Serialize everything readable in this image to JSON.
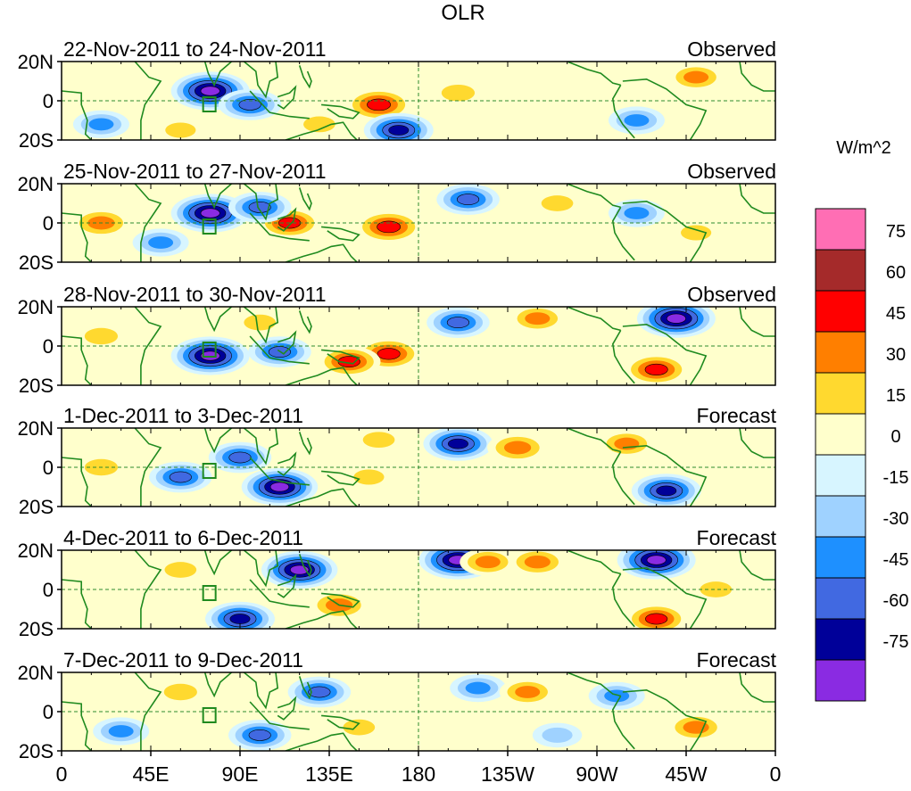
{
  "chart_data": {
    "type": "heatmap",
    "title": "OLR",
    "units": "W/m^2",
    "x_ticks": [
      "0",
      "45E",
      "90E",
      "135E",
      "180",
      "135W",
      "90W",
      "45W",
      "0"
    ],
    "x_values_deg_east": [
      0,
      45,
      90,
      135,
      180,
      225,
      270,
      315,
      360
    ],
    "y_ticks": [
      "20N",
      "0",
      "20S"
    ],
    "y_values_deg": [
      20,
      0,
      -20
    ],
    "colorbar_levels": [
      "75",
      "60",
      "45",
      "30",
      "15",
      "0",
      "-15",
      "-30",
      "-45",
      "-60",
      "-75"
    ],
    "colorbar_colors": [
      "#ff6eb4",
      "#a52a2a",
      "#ff0000",
      "#ff7f00",
      "#ffd92f",
      "#ffffcc",
      "#d7f5ff",
      "#9fd2ff",
      "#1e90ff",
      "#4169e1",
      "#000099",
      "#8a2be2"
    ],
    "panels": [
      {
        "period": "22-Nov-2011 to 24-Nov-2011",
        "status": "Observed",
        "features": [
          {
            "lon": 75,
            "lat": 5,
            "anomaly": -80
          },
          {
            "lon": 95,
            "lat": -2,
            "anomaly": -45
          },
          {
            "lon": 160,
            "lat": -2,
            "anomaly": 55
          },
          {
            "lon": 200,
            "lat": 4,
            "anomaly": 25
          },
          {
            "lon": 130,
            "lat": -12,
            "anomaly": 20
          },
          {
            "lon": 320,
            "lat": 12,
            "anomaly": 30
          },
          {
            "lon": 290,
            "lat": -10,
            "anomaly": -30
          },
          {
            "lon": 20,
            "lat": -12,
            "anomaly": -30
          },
          {
            "lon": 170,
            "lat": -15,
            "anomaly": -60
          },
          {
            "lon": 60,
            "lat": -15,
            "anomaly": 15
          }
        ]
      },
      {
        "period": "25-Nov-2011 to 27-Nov-2011",
        "status": "Observed",
        "features": [
          {
            "lon": 75,
            "lat": 5,
            "anomaly": -80
          },
          {
            "lon": 165,
            "lat": -2,
            "anomaly": 55
          },
          {
            "lon": 115,
            "lat": 0,
            "anomaly": 45
          },
          {
            "lon": 20,
            "lat": 0,
            "anomaly": 40
          },
          {
            "lon": 205,
            "lat": 12,
            "anomaly": -45
          },
          {
            "lon": 250,
            "lat": 10,
            "anomaly": 20
          },
          {
            "lon": 290,
            "lat": 5,
            "anomaly": -30
          },
          {
            "lon": 320,
            "lat": -5,
            "anomaly": 15
          },
          {
            "lon": 100,
            "lat": 8,
            "anomaly": -45
          },
          {
            "lon": 50,
            "lat": -10,
            "anomaly": -30
          }
        ]
      },
      {
        "period": "28-Nov-2011 to 30-Nov-2011",
        "status": "Observed",
        "features": [
          {
            "lon": 75,
            "lat": -5,
            "anomaly": -80
          },
          {
            "lon": 110,
            "lat": -3,
            "anomaly": -45
          },
          {
            "lon": 165,
            "lat": -4,
            "anomaly": 50
          },
          {
            "lon": 145,
            "lat": -8,
            "anomaly": 45
          },
          {
            "lon": 200,
            "lat": 12,
            "anomaly": -45
          },
          {
            "lon": 240,
            "lat": 14,
            "anomaly": 30
          },
          {
            "lon": 300,
            "lat": -12,
            "anomaly": 50
          },
          {
            "lon": 310,
            "lat": 14,
            "anomaly": -80
          },
          {
            "lon": 20,
            "lat": 5,
            "anomaly": 25
          },
          {
            "lon": 100,
            "lat": 12,
            "anomaly": 20
          }
        ]
      },
      {
        "period": "1-Dec-2011 to 3-Dec-2011",
        "status": "Forecast",
        "features": [
          {
            "lon": 200,
            "lat": 12,
            "anomaly": -60
          },
          {
            "lon": 230,
            "lat": 10,
            "anomaly": 40
          },
          {
            "lon": 160,
            "lat": 14,
            "anomaly": 20
          },
          {
            "lon": 110,
            "lat": -10,
            "anomaly": -75
          },
          {
            "lon": 90,
            "lat": 5,
            "anomaly": -45
          },
          {
            "lon": 60,
            "lat": -5,
            "anomaly": -45
          },
          {
            "lon": 20,
            "lat": 0,
            "anomaly": 25
          },
          {
            "lon": 305,
            "lat": -12,
            "anomaly": -60
          },
          {
            "lon": 285,
            "lat": 12,
            "anomaly": 30
          },
          {
            "lon": 155,
            "lat": -5,
            "anomaly": 15
          }
        ]
      },
      {
        "period": "4-Dec-2011 to 6-Dec-2011",
        "status": "Forecast",
        "features": [
          {
            "lon": 120,
            "lat": 10,
            "anomaly": -75
          },
          {
            "lon": 200,
            "lat": 15,
            "anomaly": -80
          },
          {
            "lon": 215,
            "lat": 14,
            "anomaly": 30
          },
          {
            "lon": 240,
            "lat": 14,
            "anomaly": 35
          },
          {
            "lon": 300,
            "lat": 15,
            "anomaly": -80
          },
          {
            "lon": 140,
            "lat": -8,
            "anomaly": 40
          },
          {
            "lon": 90,
            "lat": -15,
            "anomaly": -60
          },
          {
            "lon": 60,
            "lat": 10,
            "anomaly": 20
          },
          {
            "lon": 300,
            "lat": -15,
            "anomaly": 45
          },
          {
            "lon": 330,
            "lat": 0,
            "anomaly": 20
          }
        ]
      },
      {
        "period": "7-Dec-2011 to 9-Dec-2011",
        "status": "Forecast",
        "features": [
          {
            "lon": 100,
            "lat": -12,
            "anomaly": -45
          },
          {
            "lon": 130,
            "lat": 10,
            "anomaly": -45
          },
          {
            "lon": 210,
            "lat": 12,
            "anomaly": -30
          },
          {
            "lon": 235,
            "lat": 10,
            "anomaly": 30
          },
          {
            "lon": 280,
            "lat": 8,
            "anomaly": -30
          },
          {
            "lon": 320,
            "lat": -8,
            "anomaly": 35
          },
          {
            "lon": 60,
            "lat": 10,
            "anomaly": 25
          },
          {
            "lon": 150,
            "lat": -8,
            "anomaly": 20
          },
          {
            "lon": 30,
            "lat": -10,
            "anomaly": -30
          },
          {
            "lon": 250,
            "lat": -12,
            "anomaly": -15
          }
        ]
      }
    ]
  }
}
